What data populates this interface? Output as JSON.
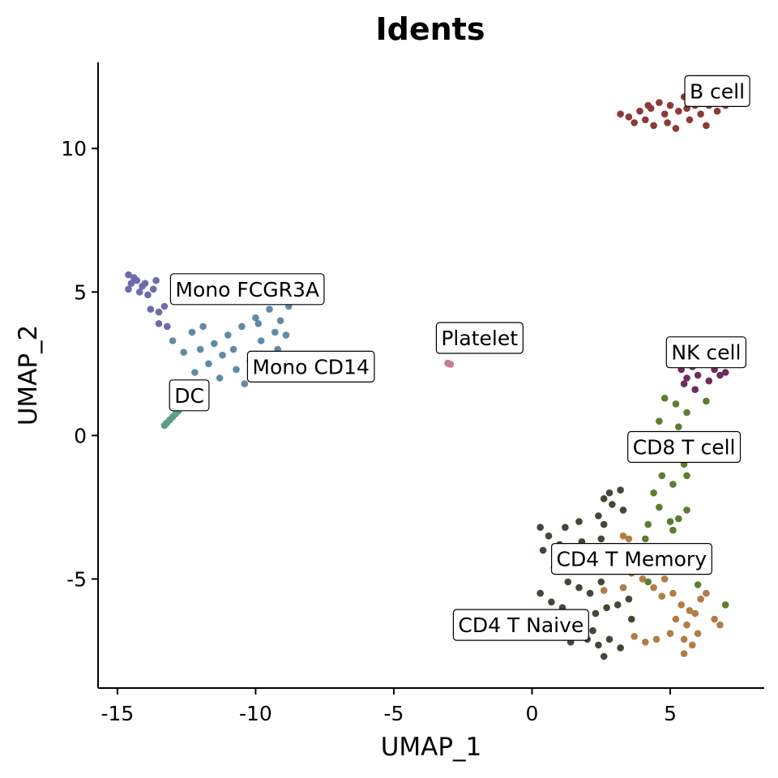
{
  "chart_data": {
    "type": "scatter",
    "title": "Idents",
    "xlabel": "UMAP_1",
    "ylabel": "UMAP_2",
    "xlim": [
      -15.7,
      8.4
    ],
    "ylim": [
      -8.8,
      13.0
    ],
    "xticks": [
      -15,
      -10,
      -5,
      0,
      5
    ],
    "yticks": [
      -5,
      0,
      5,
      10
    ],
    "xtick_labels": [
      "-15",
      "-10",
      "-5",
      "0",
      "5"
    ],
    "ytick_labels": [
      "-5",
      "0",
      "5",
      "10"
    ],
    "grid": false,
    "legend": "none",
    "series": [
      {
        "name": "B cell",
        "color": "#8B3A37",
        "label_at": [
          6.7,
          12.0
        ],
        "points": [
          [
            3.2,
            11.2
          ],
          [
            3.5,
            11.1
          ],
          [
            3.7,
            10.9
          ],
          [
            3.9,
            11.3
          ],
          [
            4.1,
            11.0
          ],
          [
            4.3,
            11.4
          ],
          [
            4.4,
            10.8
          ],
          [
            4.6,
            11.6
          ],
          [
            4.8,
            11.2
          ],
          [
            5.0,
            11.5
          ],
          [
            5.2,
            10.7
          ],
          [
            5.3,
            11.3
          ],
          [
            5.5,
            11.8
          ],
          [
            5.7,
            11.0
          ],
          [
            5.9,
            11.5
          ],
          [
            6.1,
            11.2
          ],
          [
            6.3,
            10.8
          ],
          [
            6.5,
            11.6
          ],
          [
            6.7,
            11.3
          ],
          [
            7.0,
            11.5
          ],
          [
            4.2,
            11.5
          ],
          [
            4.9,
            10.9
          ],
          [
            5.6,
            11.4
          ],
          [
            6.4,
            11.5
          ]
        ]
      },
      {
        "name": "Mono FCGR3A",
        "color": "#6E6AAE",
        "label_at": [
          -10.3,
          5.1
        ],
        "points": [
          [
            -14.6,
            5.6
          ],
          [
            -14.5,
            5.3
          ],
          [
            -14.6,
            5.1
          ],
          [
            -14.3,
            5.4
          ],
          [
            -14.2,
            5.0
          ],
          [
            -14.0,
            5.3
          ],
          [
            -13.9,
            4.9
          ],
          [
            -13.7,
            5.1
          ],
          [
            -14.4,
            5.5
          ],
          [
            -13.8,
            4.4
          ],
          [
            -13.5,
            4.3
          ],
          [
            -13.3,
            4.5
          ],
          [
            -13.5,
            3.9
          ],
          [
            -13.2,
            3.8
          ],
          [
            -14.1,
            5.2
          ],
          [
            -13.6,
            5.4
          ]
        ]
      },
      {
        "name": "Mono CD14",
        "color": "#5E8BA8",
        "label_at": [
          -8.0,
          2.4
        ],
        "points": [
          [
            -13.0,
            3.3
          ],
          [
            -12.6,
            2.9
          ],
          [
            -12.3,
            3.6
          ],
          [
            -12.0,
            3.0
          ],
          [
            -11.7,
            2.5
          ],
          [
            -11.5,
            3.2
          ],
          [
            -11.2,
            2.8
          ],
          [
            -11.0,
            3.5
          ],
          [
            -10.7,
            2.3
          ],
          [
            -10.5,
            3.8
          ],
          [
            -10.2,
            2.6
          ],
          [
            -10.0,
            4.1
          ],
          [
            -9.8,
            3.3
          ],
          [
            -9.5,
            4.4
          ],
          [
            -9.3,
            3.6
          ],
          [
            -9.1,
            4.0
          ],
          [
            -8.9,
            3.5
          ],
          [
            -11.3,
            2.0
          ],
          [
            -10.8,
            3.0
          ],
          [
            -10.4,
            1.8
          ],
          [
            -9.9,
            3.9
          ],
          [
            -9.2,
            3.0
          ],
          [
            -8.8,
            4.5
          ],
          [
            -12.2,
            2.2
          ],
          [
            -11.9,
            3.8
          ]
        ]
      },
      {
        "name": "DC",
        "color": "#5A9E83",
        "label_at": [
          -12.4,
          1.4
        ],
        "points": [
          [
            -13.3,
            0.35
          ],
          [
            -13.2,
            0.45
          ],
          [
            -13.1,
            0.55
          ],
          [
            -13.0,
            0.65
          ],
          [
            -12.9,
            0.75
          ],
          [
            -12.8,
            0.85
          ],
          [
            -12.7,
            0.95
          ],
          [
            -13.25,
            0.4
          ]
        ]
      },
      {
        "name": "Platelet",
        "color": "#C97A9E",
        "label_at": [
          -1.9,
          3.4
        ],
        "points": [
          [
            -3.0,
            2.5
          ],
          [
            -3.05,
            2.52
          ],
          [
            -2.95,
            2.48
          ]
        ]
      },
      {
        "name": "NK cell",
        "color": "#6B2D5C",
        "label_at": [
          6.3,
          2.9
        ],
        "points": [
          [
            5.4,
            2.3
          ],
          [
            5.6,
            2.0
          ],
          [
            5.8,
            2.4
          ],
          [
            6.0,
            2.1
          ],
          [
            6.2,
            2.5
          ],
          [
            6.4,
            1.9
          ],
          [
            6.6,
            2.3
          ],
          [
            6.8,
            2.1
          ],
          [
            7.0,
            2.2
          ],
          [
            5.5,
            1.8
          ],
          [
            5.9,
            1.6
          ],
          [
            6.3,
            2.6
          ]
        ]
      },
      {
        "name": "CD8 T cell",
        "color": "#5D7D32",
        "label_at": [
          5.5,
          -0.4
        ],
        "points": [
          [
            4.8,
            1.3
          ],
          [
            5.2,
            1.1
          ],
          [
            5.6,
            0.8
          ],
          [
            6.3,
            1.2
          ],
          [
            4.6,
            0.5
          ],
          [
            5.3,
            0.3
          ],
          [
            4.9,
            -0.5
          ],
          [
            5.5,
            -1.0
          ],
          [
            4.7,
            -1.4
          ],
          [
            5.1,
            -1.7
          ],
          [
            5.6,
            -1.4
          ],
          [
            4.4,
            -2.0
          ],
          [
            4.6,
            -2.5
          ],
          [
            5.3,
            -2.9
          ],
          [
            5.0,
            -3.0
          ],
          [
            5.6,
            -2.6
          ],
          [
            5.1,
            -3.3
          ],
          [
            4.2,
            -3.1
          ],
          [
            4.1,
            -3.6
          ],
          [
            4.9,
            -4.0
          ],
          [
            3.9,
            -4.4
          ],
          [
            4.2,
            -5.1
          ],
          [
            7.0,
            -5.9
          ],
          [
            6.0,
            -5.2
          ]
        ]
      },
      {
        "name": "CD4 T Memory",
        "color": "#B07D48",
        "label_at": [
          3.6,
          -4.3
        ],
        "points": [
          [
            3.3,
            -3.5
          ],
          [
            3.5,
            -3.6
          ],
          [
            2.6,
            -4.2
          ],
          [
            3.0,
            -4.1
          ],
          [
            3.6,
            -4.8
          ],
          [
            4.0,
            -5.0
          ],
          [
            4.4,
            -5.3
          ],
          [
            4.7,
            -5.6
          ],
          [
            5.1,
            -5.5
          ],
          [
            5.4,
            -5.9
          ],
          [
            5.7,
            -6.1
          ],
          [
            6.1,
            -5.7
          ],
          [
            6.3,
            -5.5
          ],
          [
            5.2,
            -6.4
          ],
          [
            5.6,
            -6.6
          ],
          [
            6.0,
            -6.9
          ],
          [
            5.5,
            -7.1
          ],
          [
            5.8,
            -7.3
          ],
          [
            5.5,
            -7.6
          ],
          [
            6.6,
            -6.4
          ],
          [
            6.8,
            -6.6
          ],
          [
            5.0,
            -6.9
          ],
          [
            4.5,
            -7.1
          ],
          [
            4.1,
            -7.2
          ],
          [
            3.7,
            -7.0
          ],
          [
            2.6,
            -5.4
          ],
          [
            3.3,
            -5.3
          ],
          [
            4.8,
            -5.0
          ],
          [
            5.9,
            -6.2
          ]
        ]
      },
      {
        "name": "CD4 T Naive",
        "color": "#444637",
        "label_at": [
          -0.4,
          -6.6
        ],
        "points": [
          [
            3.2,
            -1.9
          ],
          [
            2.8,
            -2.0
          ],
          [
            2.6,
            -2.2
          ],
          [
            2.9,
            -2.4
          ],
          [
            3.3,
            -2.6
          ],
          [
            2.4,
            -2.8
          ],
          [
            2.6,
            -3.1
          ],
          [
            1.7,
            -3.0
          ],
          [
            1.2,
            -3.2
          ],
          [
            0.3,
            -3.2
          ],
          [
            0.6,
            -3.5
          ],
          [
            1.0,
            -3.8
          ],
          [
            1.4,
            -3.9
          ],
          [
            1.8,
            -3.7
          ],
          [
            2.2,
            -4.0
          ],
          [
            2.5,
            -3.6
          ],
          [
            2.9,
            -3.9
          ],
          [
            0.4,
            -4.0
          ],
          [
            0.8,
            -4.6
          ],
          [
            1.3,
            -5.1
          ],
          [
            1.7,
            -5.3
          ],
          [
            2.1,
            -5.5
          ],
          [
            0.3,
            -5.5
          ],
          [
            0.7,
            -5.8
          ],
          [
            1.1,
            -6.0
          ],
          [
            1.5,
            -6.3
          ],
          [
            1.9,
            -6.5
          ],
          [
            2.3,
            -6.2
          ],
          [
            2.7,
            -6.0
          ],
          [
            3.1,
            -5.9
          ],
          [
            3.5,
            -5.7
          ],
          [
            1.6,
            -6.9
          ],
          [
            2.0,
            -7.1
          ],
          [
            2.4,
            -7.3
          ],
          [
            2.8,
            -7.1
          ],
          [
            3.2,
            -7.4
          ],
          [
            2.6,
            -7.7
          ],
          [
            2.2,
            -6.8
          ],
          [
            1.4,
            -7.2
          ],
          [
            3.6,
            -6.4
          ],
          [
            2.5,
            -5.1
          ],
          [
            1.0,
            -6.7
          ]
        ]
      }
    ]
  }
}
